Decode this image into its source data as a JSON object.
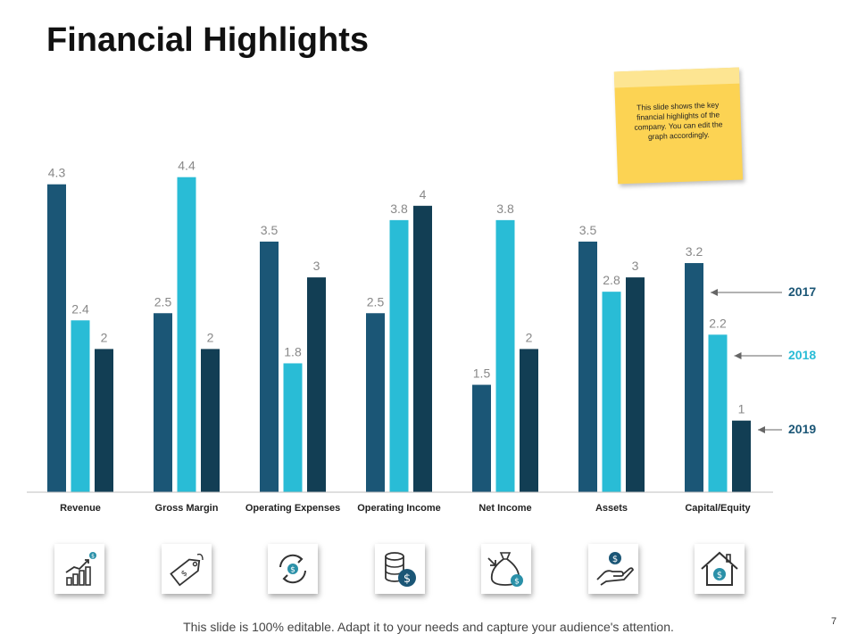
{
  "slide": {
    "title": "Financial Highlights",
    "note": "This slide shows the key financial highlights of the company. You can edit the graph accordingly.",
    "footer": "This slide is 100% editable. Adapt it to your needs and capture your audience's attention.",
    "page_number": "7"
  },
  "chart_data": {
    "type": "bar",
    "title": "",
    "xlabel": "",
    "ylabel": "",
    "ylim": [
      0,
      4.5
    ],
    "grid": false,
    "legend_position": "right",
    "categories": [
      "Revenue",
      "Gross Margin",
      "Operating Expenses",
      "Operating Income",
      "Net Income",
      "Assets",
      "Capital/Equity"
    ],
    "series": [
      {
        "name": "2017",
        "color": "#1b5676",
        "label_color": "#1b5676",
        "values": [
          4.3,
          2.5,
          3.5,
          2.5,
          1.5,
          3.5,
          3.2
        ]
      },
      {
        "name": "2018",
        "color": "#29bcd6",
        "label_color": "#29bcd6",
        "values": [
          2.4,
          4.4,
          1.8,
          3.8,
          3.8,
          2.8,
          2.2
        ]
      },
      {
        "name": "2019",
        "color": "#123e54",
        "label_color": "#1b5676",
        "values": [
          2,
          2,
          3,
          4,
          2,
          3,
          1
        ]
      }
    ]
  },
  "icons": [
    {
      "name": "growth-chart-icon",
      "category": "Revenue"
    },
    {
      "name": "price-tag-icon",
      "category": "Gross Margin"
    },
    {
      "name": "cycle-money-icon",
      "category": "Operating Expenses"
    },
    {
      "name": "coin-stack-icon",
      "category": "Operating Income"
    },
    {
      "name": "money-bag-icon",
      "category": "Net Income"
    },
    {
      "name": "hand-coin-icon",
      "category": "Assets"
    },
    {
      "name": "house-dollar-icon",
      "category": "Capital/Equity"
    }
  ]
}
